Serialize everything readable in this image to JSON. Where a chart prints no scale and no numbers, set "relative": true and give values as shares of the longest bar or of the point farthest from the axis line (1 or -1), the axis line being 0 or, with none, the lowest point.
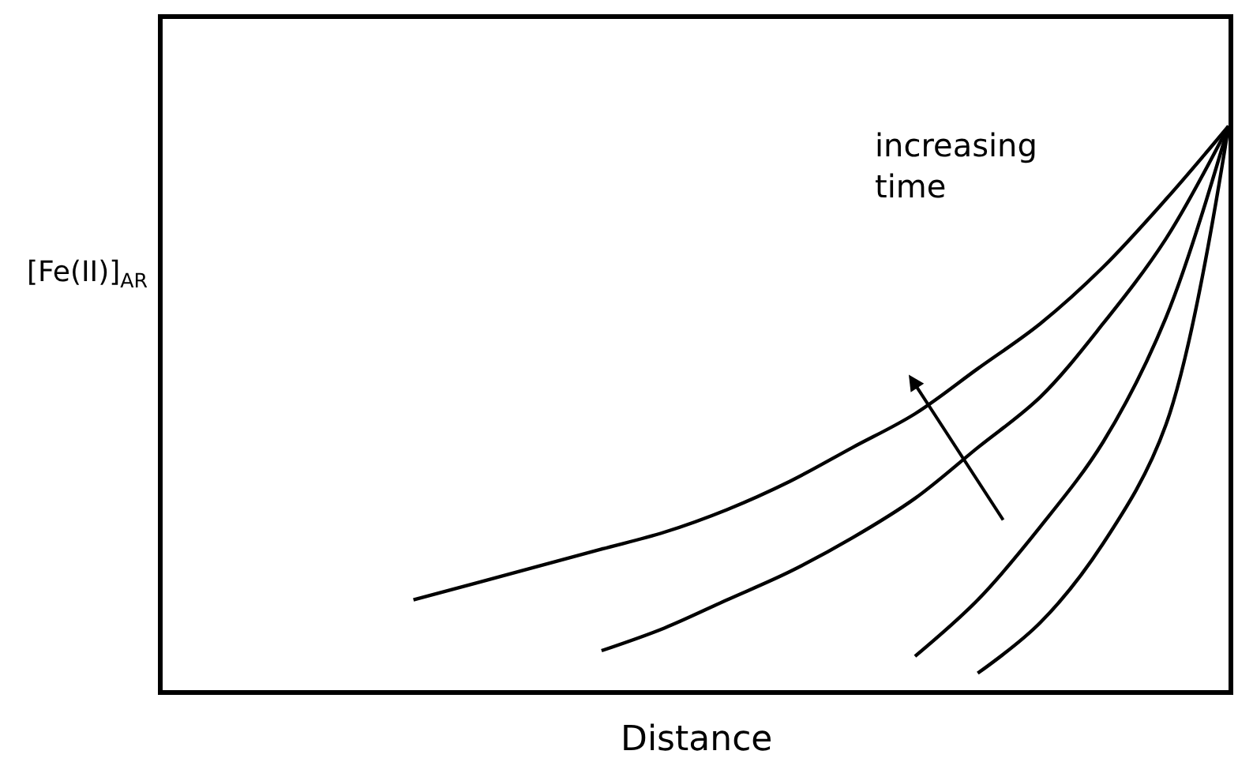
{
  "chart_data": {
    "type": "line",
    "relative": true,
    "xlabel": "Distance",
    "ylabel": "[Fe(II)]$_{AR}$",
    "categories": [
      null,
      null,
      null,
      null,
      null,
      null,
      null,
      null,
      null,
      null,
      null,
      null,
      null,
      null,
      null,
      null,
      null,
      null
    ],
    "series": [
      {
        "color": "#000000",
        "values": [
          null,
          null,
          null,
          null,
          0.16,
          0.19,
          0.22,
          0.25,
          0.28,
          0.32,
          0.37,
          0.43,
          0.49,
          0.57,
          0.65,
          0.75,
          0.87,
          1.0
        ]
      },
      {
        "color": "#000000",
        "values": [
          null,
          null,
          null,
          null,
          null,
          null,
          null,
          0.07,
          0.11,
          0.16,
          0.21,
          0.27,
          0.34,
          0.43,
          0.52,
          0.65,
          0.8,
          1.0
        ]
      },
      {
        "color": "#000000",
        "values": [
          null,
          null,
          null,
          null,
          null,
          null,
          null,
          null,
          null,
          null,
          null,
          null,
          0.06,
          0.16,
          0.29,
          0.44,
          0.66,
          1.0
        ]
      },
      {
        "color": "#000000",
        "values": [
          null,
          null,
          null,
          null,
          null,
          null,
          null,
          null,
          null,
          null,
          null,
          null,
          null,
          0.03,
          0.12,
          0.26,
          0.47,
          1.0
        ]
      }
    ],
    "annotations": [
      "increasing time"
    ],
    "marker": "none",
    "line_style": "solid"
  }
}
